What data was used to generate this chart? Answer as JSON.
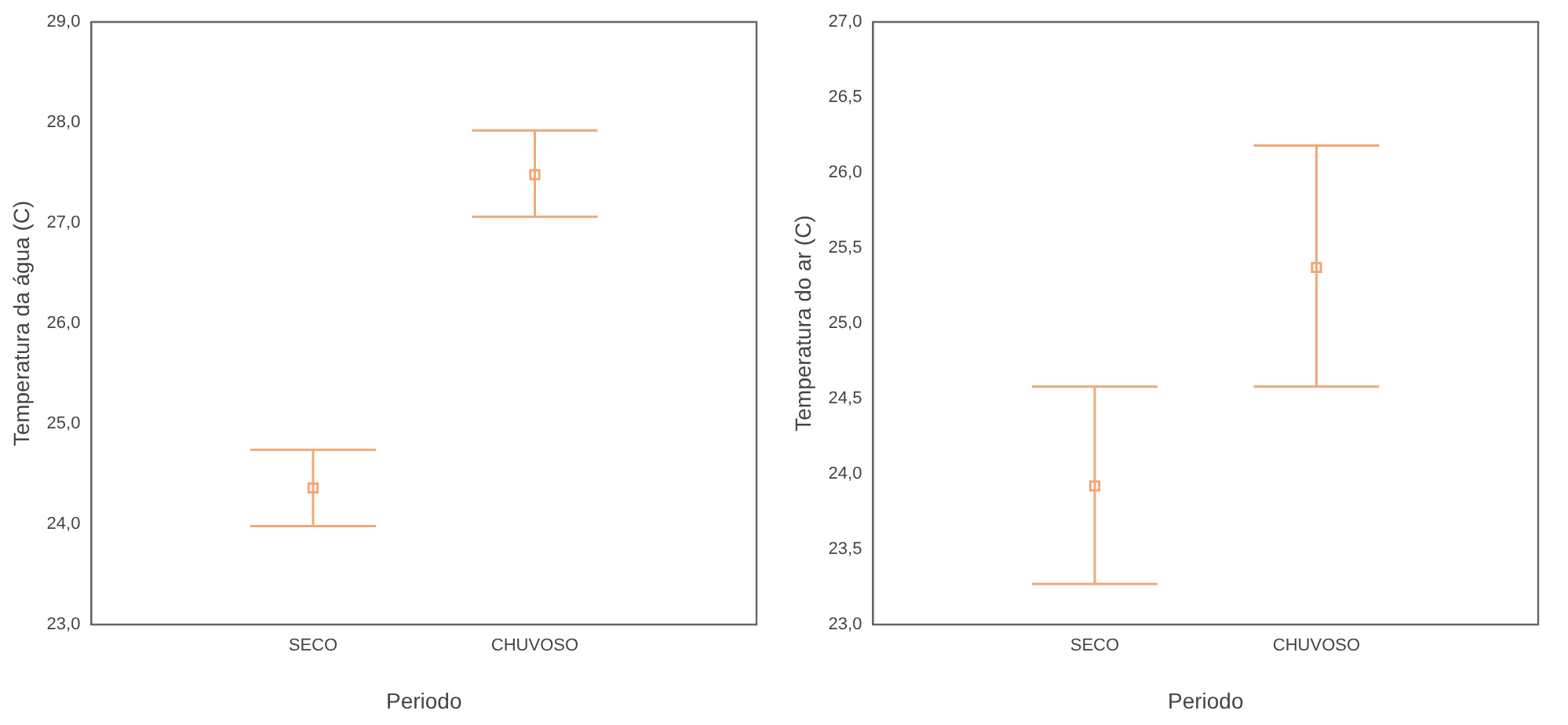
{
  "chart_data": [
    {
      "type": "scatter",
      "xlabel": "Periodo",
      "ylabel": "Temperatura da água (C)",
      "categories": [
        "SECO",
        "CHUVOSO"
      ],
      "series": [
        {
          "color": "#f0a878",
          "values": [
            24.36,
            27.48
          ],
          "errors": [
            [
              23.98,
              24.74
            ],
            [
              27.06,
              27.92
            ]
          ]
        }
      ],
      "ylim": [
        23,
        29
      ],
      "yticks": [
        {
          "value": 23,
          "label": "23,0"
        },
        {
          "value": 24,
          "label": "24,0"
        },
        {
          "value": 25,
          "label": "25,0"
        },
        {
          "value": 26,
          "label": "26,0"
        },
        {
          "value": 27,
          "label": "27,0"
        },
        {
          "value": 28,
          "label": "28,0"
        },
        {
          "value": 29,
          "label": "29,0"
        }
      ],
      "grid": false,
      "legend": false,
      "marker": "square"
    },
    {
      "type": "scatter",
      "xlabel": "Periodo",
      "ylabel": "Temperatura do ar (C)",
      "categories": [
        "SECO",
        "CHUVOSO"
      ],
      "series": [
        {
          "color": "#f0a878",
          "values": [
            23.92,
            25.37
          ],
          "errors": [
            [
              23.27,
              24.58
            ],
            [
              24.58,
              26.18
            ]
          ]
        }
      ],
      "ylim": [
        23,
        27
      ],
      "yticks": [
        {
          "value": 23,
          "label": "23,0"
        },
        {
          "value": 23.5,
          "label": "23,5"
        },
        {
          "value": 24,
          "label": "24,0"
        },
        {
          "value": 24.5,
          "label": "24,5"
        },
        {
          "value": 25,
          "label": "25,0"
        },
        {
          "value": 25.5,
          "label": "25,5"
        },
        {
          "value": 26,
          "label": "26,0"
        },
        {
          "value": 26.5,
          "label": "26,5"
        },
        {
          "value": 27,
          "label": "27,0"
        }
      ],
      "grid": false,
      "legend": false,
      "marker": "square"
    }
  ]
}
